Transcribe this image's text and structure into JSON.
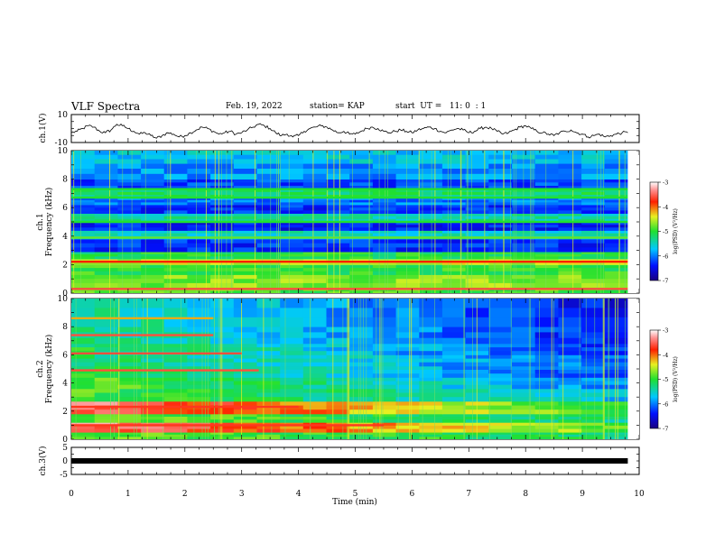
{
  "header": {
    "title": "VLF Spectra",
    "date": "Feb. 19, 2022",
    "station": "station= KAP",
    "start": "start  UT =   11: 0  : 1"
  },
  "chart_data": [
    {
      "type": "line",
      "title": "",
      "ylabel": "ch.1(V)",
      "ylim": [
        -10,
        10
      ],
      "yticks": [
        "10",
        "-10"
      ],
      "xlim": [
        0,
        10
      ],
      "x_end": 9.8,
      "x": [
        0.0,
        0.1,
        0.2,
        0.3,
        0.4,
        0.5,
        0.6,
        0.7,
        0.8,
        0.9,
        1.0,
        1.1,
        1.2,
        1.3,
        1.4,
        1.5,
        1.6,
        1.7,
        1.8,
        1.9,
        2.0,
        2.1,
        2.2,
        2.3,
        2.4,
        2.5,
        2.6,
        2.7,
        2.8,
        2.9,
        3.0,
        3.1,
        3.2,
        3.3,
        3.4,
        3.5,
        3.6,
        3.7,
        3.8,
        3.9,
        4.0,
        4.1,
        4.2,
        4.3,
        4.4,
        4.5,
        4.6,
        4.7,
        4.8,
        4.9,
        5.0,
        5.1,
        5.2,
        5.3,
        5.4,
        5.5,
        5.6,
        5.7,
        5.8,
        5.9,
        6.0,
        6.1,
        6.2,
        6.3,
        6.4,
        6.5,
        6.6,
        6.7,
        6.8,
        6.9,
        7.0,
        7.1,
        7.2,
        7.3,
        7.4,
        7.5,
        7.6,
        7.7,
        7.8,
        7.9,
        8.0,
        8.1,
        8.2,
        8.3,
        8.4,
        8.5,
        8.6,
        8.7,
        8.8,
        8.9,
        9.0,
        9.1,
        9.2,
        9.3,
        9.4,
        9.5,
        9.6,
        9.7,
        9.8
      ],
      "series": [
        {
          "values": [
            -3,
            -2,
            0,
            2,
            1,
            -2,
            -3,
            -1,
            3,
            2,
            0,
            -2,
            -4,
            -3,
            -5,
            -7,
            -5,
            -3,
            -4,
            -6,
            -5,
            -3,
            -1,
            1,
            0,
            -2,
            -4,
            -3,
            -2,
            -4,
            -3,
            -1,
            1,
            3,
            2,
            0,
            -3,
            -5,
            -4,
            -6,
            -5,
            -2,
            0,
            1,
            2,
            1,
            -1,
            -3,
            -2,
            -4,
            -4,
            -2,
            0,
            1,
            0,
            -2,
            -3,
            -2,
            -1,
            -2,
            -3,
            -1,
            0,
            1,
            0,
            -2,
            -3,
            -1,
            0,
            -1,
            -3,
            -2,
            0,
            1,
            0,
            -2,
            -4,
            -3,
            -1,
            1,
            2,
            0,
            -2,
            -3,
            -4,
            -5,
            -3,
            -2,
            -1,
            -3,
            -4,
            -6,
            -5,
            -4,
            -6,
            -5,
            -4,
            -3,
            -3
          ]
        }
      ]
    },
    {
      "type": "heatmap",
      "title": "",
      "ylabel": "Frequency (kHz)",
      "channel": "ch.1",
      "ylim": [
        0,
        10
      ],
      "yticks": [
        "0",
        "2",
        "4",
        "6",
        "8",
        "10"
      ],
      "xlim": [
        0,
        10
      ],
      "colorbar": {
        "label": "log(PSD) (V²/Hz)",
        "range": [
          -7,
          -3
        ],
        "ticks": [
          "-3",
          "-4",
          "-5",
          "-6",
          "-7"
        ]
      },
      "bands_khz": [
        {
          "from": 0.0,
          "to": 0.4,
          "value": -4.9
        },
        {
          "from": 0.4,
          "to": 1.3,
          "value": -4.7
        },
        {
          "from": 1.3,
          "to": 2.0,
          "value": -5.0
        },
        {
          "from": 2.0,
          "to": 2.4,
          "value": -4.5
        },
        {
          "from": 2.4,
          "to": 2.9,
          "value": -5.1
        },
        {
          "from": 2.9,
          "to": 3.8,
          "value": -6.3
        },
        {
          "from": 3.8,
          "to": 4.4,
          "value": -5.5
        },
        {
          "from": 4.4,
          "to": 5.0,
          "value": -6.4
        },
        {
          "from": 5.0,
          "to": 5.6,
          "value": -5.4
        },
        {
          "from": 5.6,
          "to": 6.2,
          "value": -6.3
        },
        {
          "from": 6.2,
          "to": 6.7,
          "value": -6.0
        },
        {
          "from": 6.7,
          "to": 7.3,
          "value": -5.2
        },
        {
          "from": 7.3,
          "to": 8.0,
          "value": -6.2
        },
        {
          "from": 8.0,
          "to": 9.1,
          "value": -5.9
        },
        {
          "from": 9.1,
          "to": 10.0,
          "value": -5.7
        }
      ],
      "lines_khz": [
        {
          "f": 0.3,
          "value": -3.6
        },
        {
          "f": 2.2,
          "value": -3.8
        },
        {
          "f": 3.9,
          "value": -4.8
        },
        {
          "f": 5.0,
          "value": -5.0
        },
        {
          "f": 6.7,
          "value": -5.0
        },
        {
          "f": 7.3,
          "value": -5.0
        }
      ]
    },
    {
      "type": "heatmap",
      "title": "",
      "ylabel": "Frequency (kHz)",
      "channel": "ch.2",
      "ylim": [
        0,
        10
      ],
      "yticks": [
        "0",
        "2",
        "4",
        "6",
        "8",
        "10"
      ],
      "xlim": [
        0,
        10
      ],
      "colorbar": {
        "label": "log(PSD) (V²/Hz)",
        "range": [
          -7,
          -3
        ],
        "ticks": [
          "-3",
          "-4",
          "-5",
          "-6",
          "-7"
        ]
      },
      "bands_khz": [
        {
          "from": 0.0,
          "to": 0.5,
          "value": -4.8,
          "value_end": -5.2
        },
        {
          "from": 0.5,
          "to": 1.2,
          "value": -3.4,
          "value_end": -4.8
        },
        {
          "from": 1.2,
          "to": 1.8,
          "value": -4.8,
          "value_end": -5.3
        },
        {
          "from": 1.8,
          "to": 2.7,
          "value": -3.4,
          "value_end": -5.0
        },
        {
          "from": 2.7,
          "to": 3.6,
          "value": -4.9,
          "value_end": -5.7
        },
        {
          "from": 3.6,
          "to": 4.4,
          "value": -4.8,
          "value_end": -6.0
        },
        {
          "from": 4.4,
          "to": 5.2,
          "value": -5.0,
          "value_end": -6.2
        },
        {
          "from": 5.2,
          "to": 6.0,
          "value": -5.2,
          "value_end": -6.1
        },
        {
          "from": 6.0,
          "to": 6.8,
          "value": -5.1,
          "value_end": -6.3
        },
        {
          "from": 6.8,
          "to": 8.0,
          "value": -5.3,
          "value_end": -6.4
        },
        {
          "from": 8.0,
          "to": 10.0,
          "value": -5.3,
          "value_end": -6.5
        }
      ],
      "lines_khz": [
        {
          "f": 1.0,
          "value": -3.7,
          "until_min": 5.5
        },
        {
          "f": 2.3,
          "value": -3.7,
          "until_min": 4.0
        },
        {
          "f": 4.9,
          "value": -3.6,
          "until_min": 3.3
        },
        {
          "f": 6.1,
          "value": -3.6,
          "until_min": 3.0
        },
        {
          "f": 7.4,
          "value": -3.6,
          "until_min": 2.5
        },
        {
          "f": 8.6,
          "value": -4.2,
          "until_min": 2.5
        }
      ]
    },
    {
      "type": "line",
      "title": "",
      "ylabel": "ch.3(V)",
      "ylim": [
        -5,
        5
      ],
      "yticks": [
        "5",
        "0",
        "-5"
      ],
      "xlim": [
        0,
        10
      ],
      "xlabel": "Time (min)",
      "xticks": [
        "0",
        "1",
        "2",
        "3",
        "4",
        "5",
        "6",
        "7",
        "8",
        "9",
        "10"
      ],
      "x": [
        0,
        9.8
      ],
      "series": [
        {
          "values": [
            0,
            0
          ]
        }
      ]
    }
  ]
}
